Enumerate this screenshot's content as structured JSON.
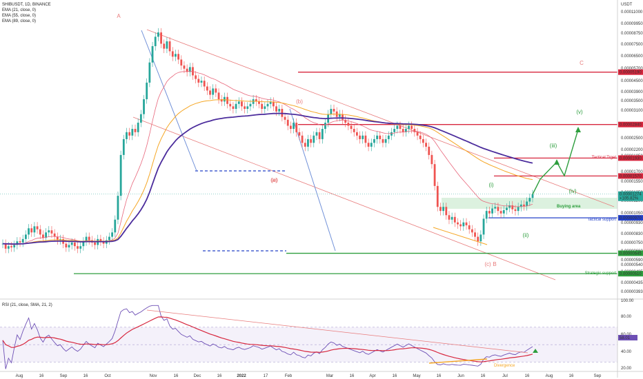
{
  "header": {
    "symbol_line": "SHIBUSDT, 1D, BINANCE",
    "indicators": [
      "EMA (21, close, 0)",
      "EMA (55, close, 0)",
      "EMA (89, close, 0)"
    ],
    "rsi_line": "RSI (21, close, SMA, 21, 2)",
    "currency": "USDT"
  },
  "colors": {
    "ema21": "#e8657a",
    "ema55": "#f5a623",
    "ema89": "#4b2c9c",
    "channel": "#e87a7a",
    "resistance": "#d7263d",
    "support_green": "#2e9e3e",
    "support_blue": "#2340c8",
    "wave_up": "#2e9e3e",
    "rsi_line": "#6d4fb5",
    "rsi_ma": "#d7263d",
    "candle_up": "#26a69a",
    "candle_down": "#ef5350"
  },
  "chart_data": {
    "type": "candlestick",
    "x_axis_labels": [
      "Aug",
      "16",
      "Sep",
      "16",
      "Oct",
      "Nov",
      "16",
      "Dec",
      "16",
      "2022",
      "17",
      "Feb",
      "Mar",
      "16",
      "Apr",
      "16",
      "May",
      "16",
      "Jun",
      "16",
      "Jul",
      "16",
      "Aug",
      "16",
      "Sep"
    ],
    "y_axis_labels": [
      "0.00011000",
      "0.00009950",
      "0.00008750",
      "0.00007500",
      "0.00006500",
      "0.00005700",
      "0.00004500",
      "0.00003900",
      "0.00003500",
      "0.00003100",
      "0.00002500",
      "0.00002200",
      "0.00001950",
      "0.00001700",
      "0.00001550",
      "0.00001350",
      "0.00001200",
      "0.00001050",
      "0.00000930",
      "0.00000830",
      "0.00000750",
      "0.00000660",
      "0.00000590",
      "0.00000540",
      "0.00000485",
      "0.00000435",
      "0.00000393"
    ],
    "ylim": [
      3.93e-06,
      0.00011
    ],
    "y_scale": "log",
    "price_levels": [
      {
        "label": "0.00005190",
        "value": 5.19e-05,
        "kind": "resistance"
      },
      {
        "label": "0.00002840",
        "value": 2.84e-05,
        "kind": "resistance"
      },
      {
        "label": "0.00001930",
        "value": 1.93e-05,
        "kind": "resistance",
        "note": "Tactical Trget"
      },
      {
        "label": "0.00001570",
        "value": 1.57e-05,
        "kind": "resistance"
      },
      {
        "label": "0.00000970",
        "value": 9.7e-06,
        "kind": "support_blue",
        "note": "Tactical support"
      },
      {
        "label": "0.00000645",
        "value": 6.45e-06,
        "kind": "support_green"
      },
      {
        "label": "0.00000510",
        "value": 5.1e-06,
        "kind": "support_green",
        "note": "Strategic support"
      }
    ],
    "current_price": {
      "label": "0.00001274",
      "change": "+105.82%"
    },
    "buying_area_label": "Buying area",
    "wave_labels": [
      "A",
      "B",
      "C",
      "(a)",
      "(b)",
      "(c)",
      "(e)",
      "(i)",
      "(ii)",
      "(iii)",
      "(iv)",
      "(v)"
    ],
    "closes": [
      7.2,
      6.8,
      7.0,
      6.9,
      7.1,
      7.4,
      7.3,
      7.6,
      8.0,
      8.6,
      8.2,
      8.8,
      8.5,
      8.0,
      7.7,
      8.2,
      8.4,
      8.1,
      7.8,
      7.5,
      7.6,
      7.2,
      6.9,
      7.1,
      7.3,
      7.0,
      6.8,
      7.0,
      7.4,
      7.8,
      7.5,
      7.3,
      7.1,
      7.6,
      7.4,
      7.2,
      7.5,
      7.8,
      8.2,
      9.5,
      12.5,
      20,
      24,
      26,
      25,
      27,
      26,
      29,
      32,
      38,
      46,
      58,
      70,
      78,
      82,
      72,
      68,
      74,
      66,
      62,
      64,
      60,
      56,
      54,
      52,
      55,
      50,
      48,
      46,
      47,
      44,
      42,
      40,
      43,
      41,
      38,
      37,
      39,
      36,
      35,
      34,
      36,
      37,
      35,
      34,
      35,
      36,
      38,
      37,
      36,
      34,
      35,
      36,
      37,
      35,
      33,
      34,
      31,
      30,
      28,
      27,
      29,
      26,
      25,
      23,
      22,
      24,
      23,
      25,
      26,
      24,
      27,
      29,
      32,
      34,
      33,
      31,
      32,
      30,
      29,
      28,
      27,
      26,
      25,
      24,
      25,
      23,
      22,
      23,
      24,
      25,
      24,
      23,
      24,
      25,
      26,
      27,
      28,
      27,
      26,
      27,
      28,
      27,
      26,
      25,
      24,
      23,
      22,
      20,
      18,
      14,
      11,
      10.5,
      11,
      10,
      9.5,
      9.8,
      9.2,
      9,
      8.8,
      9.2,
      8.9,
      8.5,
      8.2,
      7.8,
      7.4,
      8.0,
      9.6,
      10.5,
      10.2,
      10.8,
      11.0,
      10.5,
      10.2,
      10.6,
      10.9,
      11.2,
      10.7,
      10.5,
      11.0,
      11.3,
      11.1,
      11.7,
      12.2,
      12.74
    ],
    "rsi": {
      "ylim": [
        20,
        100
      ],
      "y_axis_labels": [
        "100.00",
        "80.00",
        "60.00",
        "40.00",
        "20.00"
      ],
      "current_label": "58.01",
      "annotation": "Divergence"
    }
  }
}
